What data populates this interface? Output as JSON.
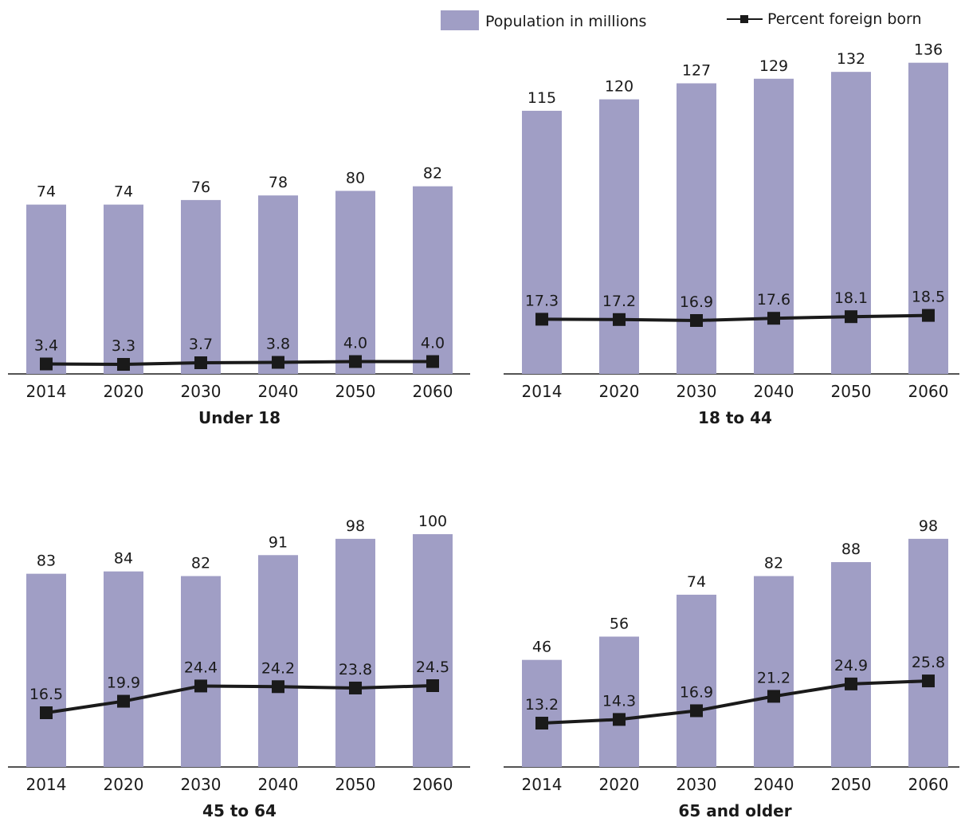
{
  "legend": {
    "bar_label": "Population in millions",
    "line_label": "Percent foreign born"
  },
  "colors": {
    "bar": "#a09ec5",
    "line": "#1a1a1a",
    "marker": "#1a1a1a",
    "axis": "#1a1a1a"
  },
  "chart_data": [
    {
      "type": "bar",
      "title": "Under 18",
      "categories": [
        "2014",
        "2020",
        "2030",
        "2040",
        "2050",
        "2060"
      ],
      "series": [
        {
          "name": "Population in millions",
          "type": "bar",
          "values": [
            74,
            74,
            76,
            78,
            80,
            82
          ],
          "labels": [
            "74",
            "74",
            "76",
            "78",
            "80",
            "82"
          ]
        },
        {
          "name": "Percent foreign born",
          "type": "line",
          "values": [
            3.4,
            3.3,
            3.7,
            3.8,
            4.0,
            4.0
          ],
          "labels": [
            "3.4",
            "3.3",
            "3.7",
            "3.8",
            "4.0",
            "4.0"
          ]
        }
      ]
    },
    {
      "type": "bar",
      "title": "18 to 44",
      "categories": [
        "2014",
        "2020",
        "2030",
        "2040",
        "2050",
        "2060"
      ],
      "series": [
        {
          "name": "Population in millions",
          "type": "bar",
          "values": [
            115,
            120,
            127,
            129,
            132,
            136
          ],
          "labels": [
            "115",
            "120",
            "127",
            "129",
            "132",
            "136"
          ]
        },
        {
          "name": "Percent foreign born",
          "type": "line",
          "values": [
            17.3,
            17.2,
            16.9,
            17.6,
            18.1,
            18.5
          ],
          "labels": [
            "17.3",
            "17.2",
            "16.9",
            "17.6",
            "18.1",
            "18.5"
          ]
        }
      ]
    },
    {
      "type": "bar",
      "title": "45 to 64",
      "categories": [
        "2014",
        "2020",
        "2030",
        "2040",
        "2050",
        "2060"
      ],
      "series": [
        {
          "name": "Population in millions",
          "type": "bar",
          "values": [
            83,
            84,
            82,
            91,
            98,
            100
          ],
          "labels": [
            "83",
            "84",
            "82",
            "91",
            "98",
            "100"
          ]
        },
        {
          "name": "Percent foreign born",
          "type": "line",
          "values": [
            16.5,
            19.9,
            24.4,
            24.2,
            23.8,
            24.5
          ],
          "labels": [
            "16.5",
            "19.9",
            "24.4",
            "24.2",
            "23.8",
            "24.5"
          ]
        }
      ]
    },
    {
      "type": "bar",
      "title": "65 and older",
      "categories": [
        "2014",
        "2020",
        "2030",
        "2040",
        "2050",
        "2060"
      ],
      "series": [
        {
          "name": "Population in millions",
          "type": "bar",
          "values": [
            46,
            56,
            74,
            82,
            88,
            98
          ],
          "labels": [
            "46",
            "56",
            "74",
            "82",
            "88",
            "98"
          ]
        },
        {
          "name": "Percent foreign born",
          "type": "line",
          "values": [
            13.2,
            14.3,
            16.9,
            21.2,
            24.9,
            25.8
          ],
          "labels": [
            "13.2",
            "14.3",
            "16.9",
            "21.2",
            "24.9",
            "25.8"
          ]
        }
      ]
    }
  ]
}
